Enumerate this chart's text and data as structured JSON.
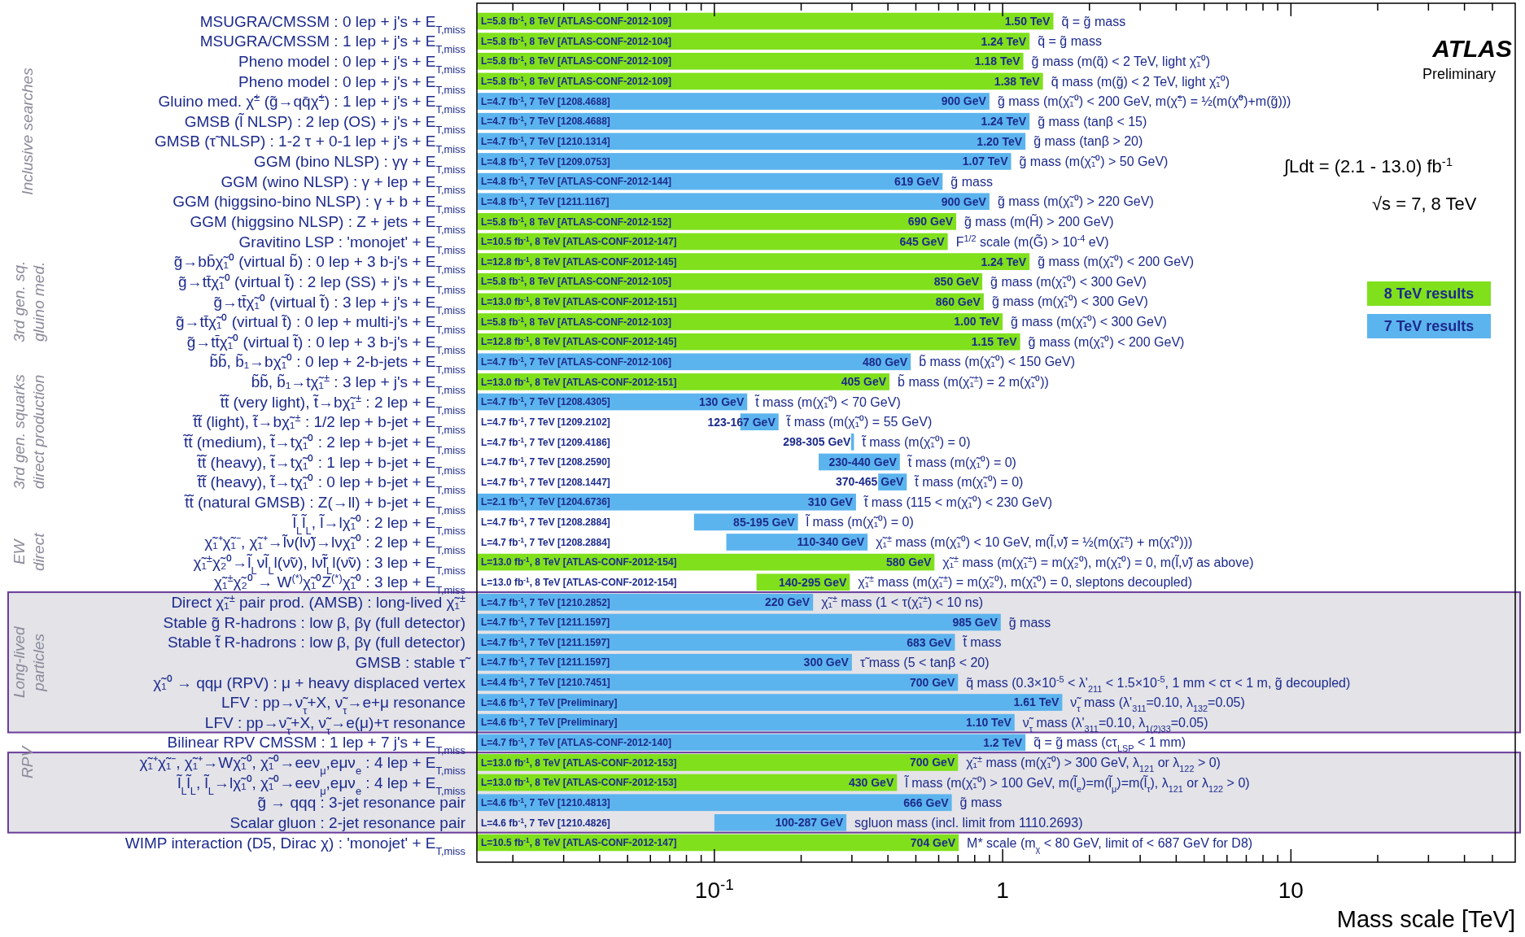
{
  "chart_data": {
    "type": "bar",
    "orientation": "horizontal",
    "log": "x",
    "categories": [
      "MSUGRA/CMSSM : 0 lep + j's + E$_{T,miss}$",
      "MSUGRA/CMSSM : 1 lep + j's + E$_{T,miss}$",
      "Pheno model : 0 lep + j's + E$_{T,miss}$",
      "Pheno model : 0 lep + j's + E$_{T,miss}$",
      "Gluino med. χ̃$^{±}$ (g̃→qq̄χ̃$^{±}$) : 1 lep + j's + E$_{T,miss}$",
      "GMSB (l̃ NLSP) : 2 lep (OS) + j's + E$_{T,miss}$",
      "GMSB (τ̃ NLSP) : 1-2 τ + 0-1 lep + j's + E$_{T,miss}$",
      "GGM (bino NLSP) : γγ + E$_{T,miss}$",
      "GGM (wino NLSP) : γ + lep + E$_{T,miss}$",
      "GGM (higgsino-bino NLSP) : γ + b + E$_{T,miss}$",
      "GGM (higgsino NLSP) : Z + jets + E$_{T,miss}$",
      "Gravitino LSP : 'monojet' + E$_{T,miss}$",
      "g̃→bb̄χ̃₁⁰ (virtual b̃) : 0 lep + 3 b-j's + E$_{T,miss}$",
      "g̃→tt̄χ̃₁⁰ (virtual t̃) : 2 lep (SS) + j's + E$_{T,miss}$",
      "g̃→tt̄χ̃₁⁰ (virtual t̃) : 3 lep + j's + E$_{T,miss}$",
      "g̃→tt̄χ̃₁⁰ (virtual t̃) : 0 lep + multi-j's + E$_{T,miss}$",
      "g̃→tt̄χ̃₁⁰ (virtual t̃) : 0 lep + 3 b-j's + E$_{T,miss}$",
      "b̃b̃, b̃₁→bχ̃₁⁰ : 0 lep + 2-b-jets + E$_{T,miss}$",
      "b̃b̃, b̃₁→tχ̃₁$^{±}$ : 3 lep + j's + E$_{T,miss}$",
      "t̃t̃ (very light), t̃→bχ̃₁$^{±}$ : 2 lep + E$_{T,miss}$",
      "t̃t̃ (light), t̃→bχ̃₁$^{±}$ : 1/2 lep + b-jet + E$_{T,miss}$",
      "t̃t̃ (medium), t̃→tχ̃₁⁰ : 2 lep + b-jet + E$_{T,miss}$",
      "t̃t̃ (heavy), t̃→tχ̃₁⁰ : 1 lep + b-jet + E$_{T,miss}$",
      "t̃t̃ (heavy), t̃→tχ̃₁⁰ : 0 lep + b-jet + E$_{T,miss}$",
      "t̃t̃ (natural GMSB) : Z(→ll) + b-jet + E$_{T,miss}$",
      "l̃$_{L}$l̃$_{L}$, l̃→lχ̃₁⁰ : 2 lep + E$_{T,miss}$",
      "χ̃₁⁺χ̃₁⁻, χ̃₁⁺→l̃ν(lν̃)→lνχ̃₁⁰ : 2 lep + E$_{T,miss}$",
      "χ̃₁$^{±}$χ̃₂⁰→l̃$_{L}$νl̃$_{L}$l(ν̃ν), lν̃l̃$_{L}$l(ν̃ν) : 3 lep + E$_{T,miss}$",
      "χ̃₁$^{±}$χ̃₂⁰ → W$^{(*)}$χ̃₁⁰Z$^{(*)}$χ̃₁⁰ : 3 lep + E$_{T,miss}$",
      "Direct χ̃₁$^{±}$ pair prod. (AMSB) : long-lived χ̃₁$^{±}$",
      "Stable g̃ R-hadrons : low β, βγ (full detector)",
      "Stable t̃ R-hadrons : low β, βγ (full detector)",
      "GMSB : stable τ̃",
      "χ̃₁⁰ → qqμ (RPV) : μ + heavy displaced vertex",
      "LFV : pp→ν̃$_{τ}$+X, ν̃$_{τ}$→e+μ resonance",
      "LFV : pp→ν̃$_{τ}$+X, ν̃$_{τ}$→e(μ)+τ resonance",
      "Bilinear RPV CMSSM : 1 lep + 7 j's + E$_{T,miss}$",
      "χ̃₁⁺χ̃₁⁻, χ̃₁⁺→Wχ̃₁⁰, χ̃₁⁰→eeν$_{μ}$,eμν$_{e}$ : 4 lep + E$_{T,miss}$",
      "l̃$_{L}$l̃$_{L}$, l̃$_{L}$→lχ̃₁⁰, χ̃₁⁰→eeν$_{μ}$,eμν$_{e}$ : 4 lep + E$_{T,miss}$",
      "g̃ → qqq : 3-jet resonance pair",
      "Scalar gluon : 2-jet resonance pair",
      "WIMP interaction (D5, Dirac χ) : 'monojet' + E$_{T,miss}$"
    ],
    "series": [
      {
        "name": "8 TeV results",
        "color": "#80e01c",
        "base": [
          null,
          null,
          null,
          null,
          null,
          null,
          null,
          null,
          null,
          null,
          null,
          null,
          null,
          null,
          null,
          null,
          null,
          null,
          null,
          null,
          null,
          null,
          null,
          null,
          null,
          null,
          null,
          null,
          0.14,
          null,
          null,
          null,
          null,
          null,
          null,
          null,
          null,
          null,
          null,
          null,
          null,
          null
        ],
        "values": [
          1.5,
          1.24,
          1.18,
          1.38,
          null,
          null,
          null,
          null,
          null,
          null,
          0.69,
          0.645,
          1.24,
          0.85,
          0.86,
          1.0,
          1.15,
          null,
          0.405,
          null,
          null,
          null,
          null,
          null,
          null,
          null,
          null,
          0.58,
          0.155,
          null,
          null,
          null,
          null,
          null,
          null,
          null,
          null,
          0.7,
          0.43,
          null,
          null,
          0.704
        ]
      },
      {
        "name": "7 TeV results",
        "color": "#5cb4ee",
        "base": [
          null,
          null,
          null,
          null,
          null,
          null,
          null,
          null,
          null,
          null,
          null,
          null,
          null,
          null,
          null,
          null,
          null,
          null,
          null,
          null,
          0.123,
          0.298,
          0.23,
          0.37,
          null,
          0.085,
          0.11,
          null,
          null,
          null,
          null,
          null,
          null,
          null,
          null,
          null,
          null,
          null,
          null,
          null,
          0.1,
          null
        ],
        "values": [
          null,
          null,
          null,
          null,
          0.9,
          1.24,
          1.2,
          1.07,
          0.619,
          0.9,
          null,
          null,
          null,
          null,
          null,
          null,
          null,
          0.48,
          null,
          0.13,
          0.044,
          0.007,
          0.21,
          0.095,
          0.31,
          0.11,
          0.23,
          null,
          null,
          0.22,
          0.985,
          0.683,
          0.3,
          0.7,
          1.61,
          1.1,
          1.2,
          null,
          null,
          0.666,
          0.187,
          null
        ]
      }
    ],
    "value_labels": [
      "1.50 TeV",
      "1.24 TeV",
      "1.18 TeV",
      "1.38 TeV",
      "900 GeV",
      "1.24 TeV",
      "1.20 TeV",
      "1.07 TeV",
      "619 GeV",
      "900 GeV",
      "690 GeV",
      "645 GeV",
      "1.24 TeV",
      "850 GeV",
      "860 GeV",
      "1.00 TeV",
      "1.15 TeV",
      "480 GeV",
      "405 GeV",
      "130 GeV",
      "123-167 GeV",
      "298-305 GeV",
      "230-440 GeV",
      "370-465 GeV",
      "310 GeV",
      "85-195 GeV",
      "110-340 GeV",
      "580 GeV",
      "140-295 GeV",
      "220 GeV",
      "985 GeV",
      "683 GeV",
      "300 GeV",
      "700 GeV",
      "1.61 TeV",
      "1.10 TeV",
      "1.2 TeV",
      "700 GeV",
      "430 GeV",
      "666 GeV",
      "100-287 GeV",
      "704 GeV"
    ],
    "xlim": [
      0.015,
      60
    ],
    "xticks": [
      {
        "value": 0.02,
        "label": null
      },
      {
        "value": 0.03,
        "label": null
      },
      {
        "value": 0.04,
        "label": null
      },
      {
        "value": 0.05,
        "label": null
      },
      {
        "value": 0.06,
        "label": null
      },
      {
        "value": 0.07,
        "label": null
      },
      {
        "value": 0.08,
        "label": null
      },
      {
        "value": 0.09,
        "label": null
      },
      {
        "value": 0.1,
        "label": "10$^{-1}$"
      },
      {
        "value": 0.2,
        "label": null
      },
      {
        "value": 0.3,
        "label": null
      },
      {
        "value": 0.4,
        "label": null
      },
      {
        "value": 0.5,
        "label": null
      },
      {
        "value": 0.6,
        "label": null
      },
      {
        "value": 0.7,
        "label": null
      },
      {
        "value": 0.8,
        "label": null
      },
      {
        "value": 0.9,
        "label": null
      },
      1,
      {
        "value": 2,
        "label": null
      },
      {
        "value": 3,
        "label": null
      },
      {
        "value": 4,
        "label": null
      },
      {
        "value": 5,
        "label": null
      },
      {
        "value": 6,
        "label": null
      },
      {
        "value": 7,
        "label": null
      },
      {
        "value": 8,
        "label": null
      },
      {
        "value": 9,
        "label": null
      },
      10,
      {
        "value": 20,
        "label": null
      },
      {
        "value": 30,
        "label": null
      },
      {
        "value": 40,
        "label": null
      },
      {
        "value": 50,
        "label": null
      }
    ],
    "xlabel": "Mass scale [TeV]",
    "legend": "right",
    "bands": [
      {
        "axis": "y",
        "from": "Direct χ̃₁$^{±}$ pair prod. (AMSB) : long-lived χ̃₁$^{±}$",
        "to": "LFV : pp→ν̃$_{τ}$+X, ν̃$_{τ}$→e(μ)+τ resonance",
        "color": "#e3e3e8"
      },
      {
        "axis": "y",
        "from": "χ̃₁⁺χ̃₁⁻, χ̃₁⁺→Wχ̃₁⁰, χ̃₁⁰→eeν$_{μ}$,eμν$_{e}$ : 4 lep + E$_{T,miss}$",
        "to": "Scalar gluon : 2-jet resonance pair",
        "color": "#e3e3e8"
      }
    ],
    "annotations": [
      "ATLAS",
      "Preliminary",
      "∫Ldt = (2.1 - 13.0) fb$^{-1}$",
      "√s = 7, 8 TeV",
      "Inclusive searches",
      "3rd gen. sq.\ngluino med.",
      "3rd gen. squarks\ndirect production",
      "EW\ndirect",
      "Long-lived\nparticles",
      "RPV",
      "L=5.8 fb$^{-1}$, 8 TeV [ATLAS-CONF-2012-109]",
      "L=5.8 fb$^{-1}$, 8 TeV [ATLAS-CONF-2012-104]",
      "L=5.8 fb$^{-1}$, 8 TeV [ATLAS-CONF-2012-109]",
      "L=5.8 fb$^{-1}$, 8 TeV [ATLAS-CONF-2012-109]",
      "L=4.7 fb$^{-1}$, 7 TeV [1208.4688]",
      "L=4.7 fb$^{-1}$, 7 TeV [1208.4688]",
      "L=4.7 fb$^{-1}$, 7 TeV [1210.1314]",
      "L=4.8 fb$^{-1}$, 7 TeV [1209.0753]",
      "L=4.8 fb$^{-1}$, 7 TeV [ATLAS-CONF-2012-144]",
      "L=4.8 fb$^{-1}$, 7 TeV [1211.1167]",
      "L=5.8 fb$^{-1}$, 8 TeV [ATLAS-CONF-2012-152]",
      "L=10.5 fb$^{-1}$, 8 TeV [ATLAS-CONF-2012-147]",
      "L=12.8 fb$^{-1}$, 8 TeV [ATLAS-CONF-2012-145]",
      "L=5.8 fb$^{-1}$, 8 TeV [ATLAS-CONF-2012-105]",
      "L=13.0 fb$^{-1}$, 8 TeV [ATLAS-CONF-2012-151]",
      "L=5.8 fb$^{-1}$, 8 TeV [ATLAS-CONF-2012-103]",
      "L=12.8 fb$^{-1}$, 8 TeV [ATLAS-CONF-2012-145]",
      "L=4.7 fb$^{-1}$, 7 TeV [ATLAS-CONF-2012-106]",
      "L=13.0 fb$^{-1}$, 8 TeV [ATLAS-CONF-2012-151]",
      "L=4.7 fb$^{-1}$, 7 TeV [1208.4305]",
      "L=4.7 fb$^{-1}$, 7 TeV [1209.2102]",
      "L=4.7 fb$^{-1}$, 7 TeV [1209.4186]",
      "L=4.7 fb$^{-1}$, 7 TeV [1208.2590]",
      "L=4.7 fb$^{-1}$, 7 TeV [1208.1447]",
      "L=2.1 fb$^{-1}$, 7 TeV [1204.6736]",
      "L=4.7 fb$^{-1}$, 7 TeV [1208.2884]",
      "L=4.7 fb$^{-1}$, 7 TeV [1208.2884]",
      "L=13.0 fb$^{-1}$, 8 TeV [ATLAS-CONF-2012-154]",
      "L=13.0 fb$^{-1}$, 8 TeV [ATLAS-CONF-2012-154]",
      "L=4.7 fb$^{-1}$, 7 TeV [1210.2852]",
      "L=4.7 fb$^{-1}$, 7 TeV [1211.1597]",
      "L=4.7 fb$^{-1}$, 7 TeV [1211.1597]",
      "L=4.7 fb$^{-1}$, 7 TeV [1211.1597]",
      "L=4.4 fb$^{-1}$, 7 TeV [1210.7451]",
      "L=4.6 fb$^{-1}$, 7 TeV [Preliminary]",
      "L=4.6 fb$^{-1}$, 7 TeV [Preliminary]",
      "L=4.7 fb$^{-1}$, 7 TeV [ATLAS-CONF-2012-140]",
      "L=13.0 fb$^{-1}$, 8 TeV [ATLAS-CONF-2012-153]",
      "L=13.0 fb$^{-1}$, 8 TeV [ATLAS-CONF-2012-153]",
      "L=4.6 fb$^{-1}$, 7 TeV [1210.4813]",
      "L=4.6 fb$^{-1}$, 7 TeV [1210.4826]",
      "L=10.5 fb$^{-1}$, 8 TeV [ATLAS-CONF-2012-147]",
      "q̃ = g̃ mass",
      "q̃ = g̃ mass",
      "g̃ mass  (m(q̃) < 2 TeV, light χ̃₁⁰)",
      "q̃ mass  (m(g̃) < 2 TeV, light χ̃₁⁰)",
      "g̃ mass  (m(χ̃₁⁰) < 200 GeV, m(χ̃$^{±}$) = ½(m(χ̃⁰)+m(g̃)))",
      "g̃ mass  (tanβ < 15)",
      "g̃ mass  (tanβ > 20)",
      "g̃ mass  (m(χ̃₁⁰) > 50 GeV)",
      "g̃ mass",
      "g̃ mass  (m(χ̃₁⁰) > 220 GeV)",
      "g̃ mass  (m(H̃) > 200 GeV)",
      "F$^{1/2}$ scale  (m(G̃) > 10$^{-4}$ eV)",
      "g̃ mass  (m(χ̃₁⁰) < 200 GeV)",
      "g̃ mass  (m(χ̃₁⁰) < 300 GeV)",
      "g̃ mass  (m(χ̃₁⁰) < 300 GeV)",
      "g̃ mass  (m(χ̃₁⁰) < 300 GeV)",
      "g̃ mass  (m(χ̃₁⁰) < 200 GeV)",
      "b̃ mass  (m(χ̃₁⁰) < 150 GeV)",
      "b̃ mass  (m(χ̃₁$^{±}$) = 2 m(χ̃₁⁰))",
      "t̃ mass  (m(χ̃₁⁰) < 70 GeV)",
      "t̃ mass  (m(χ̃₁⁰) = 55 GeV)",
      "t̃ mass  (m(χ̃₁⁰) = 0)",
      "t̃ mass  (m(χ̃₁⁰) = 0)",
      "t̃ mass  (m(χ̃₁⁰) = 0)",
      "t̃ mass  (115 < m(χ̃₁⁰) < 230 GeV)",
      "l̃ mass  (m(χ̃₁⁰) = 0)",
      "χ̃₁$^{±}$ mass  (m(χ̃₁⁰) < 10 GeV, m(l̃,ν̃) = ½(m(χ̃₁$^{±}$) + m(χ̃₁⁰)))",
      "χ̃₁$^{±}$ mass  (m(χ̃₁$^{±}$) = m(χ̃₂⁰), m(χ̃₁⁰) = 0, m(l̃,ν̃) as above)",
      "χ̃₁$^{±}$ mass  (m(χ̃₁$^{±}$) = m(χ̃₂⁰), m(χ̃₁⁰) = 0, sleptons decoupled)",
      "χ̃₁$^{±}$ mass  (1 < τ(χ̃₁$^{±}$) < 10 ns)",
      "g̃ mass",
      "t̃ mass",
      "τ̃ mass  (5 < tanβ < 20)",
      "q̃ mass  (0.3×10$^{-5}$ < λ'$_{211}$ < 1.5×10$^{-5}$, 1 mm < cτ < 1 m, g̃ decoupled)",
      "ν̃$_{τ}$ mass  (λ'$_{311}$=0.10, λ$_{132}$=0.05)",
      "ν̃$_{τ}$ mass  (λ'$_{311}$=0.10, λ$_{1(2)33}$=0.05)",
      "q̃ = g̃ mass  (cτ$_{LSP}$ < 1 mm)",
      "χ̃₁$^{±}$ mass  (m(χ̃₁⁰) > 300 GeV, λ$_{121}$ or λ$_{122}$ > 0)",
      "l̃ mass  (m(χ̃₁⁰) > 100 GeV, m(l̃$_{e}$)=m(l̃$_{μ}$)=m(l̃$_{τ}$), λ$_{121}$ or λ$_{122}$ > 0)",
      "g̃ mass",
      "sgluon mass  (incl. limit from 1110.2693)",
      "M* scale  (m$_{χ}$ < 80 GeV, limit of < 687 GeV for D8)"
    ]
  }
}
